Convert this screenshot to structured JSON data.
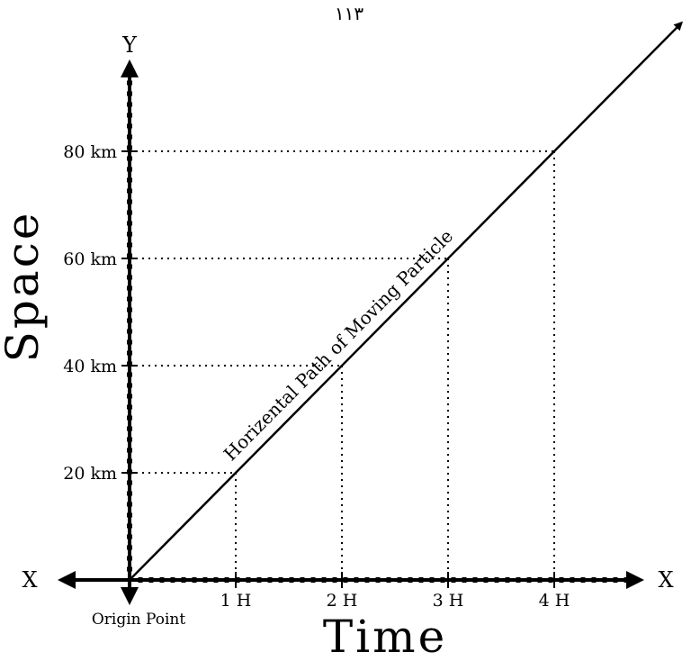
{
  "page_number": "۱۱۳",
  "chart_data": {
    "type": "line",
    "xlabel": "Time",
    "ylabel": "Space",
    "x_axis_letter": "X",
    "x_axis_letter_left": "X",
    "y_axis_letter": "Y",
    "origin_label": "Origin Point",
    "x_ticks": [
      {
        "value": 1,
        "label": "1 H"
      },
      {
        "value": 2,
        "label": "2 H"
      },
      {
        "value": 3,
        "label": "3 H"
      },
      {
        "value": 4,
        "label": "4 H"
      }
    ],
    "y_ticks": [
      {
        "value": 20,
        "label": "20 km"
      },
      {
        "value": 40,
        "label": "40 km"
      },
      {
        "value": 60,
        "label": "60 km"
      },
      {
        "value": 80,
        "label": "80 km"
      }
    ],
    "series": [
      {
        "x": [
          0,
          1,
          2,
          3,
          4
        ],
        "y": [
          0,
          20,
          40,
          60,
          80
        ]
      }
    ],
    "annotation": "Horizental Path of Moving Particle",
    "xlim": [
      0,
      4
    ],
    "ylim": [
      0,
      80
    ],
    "grid": "dotted guide lines at tick values"
  }
}
